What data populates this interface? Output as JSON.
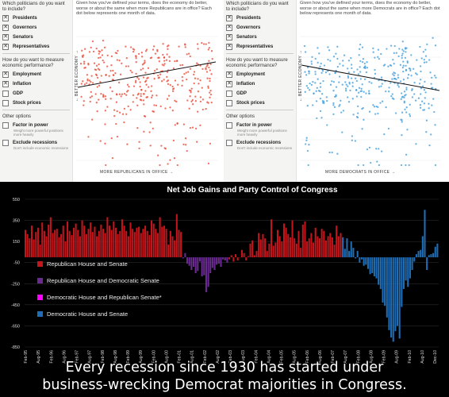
{
  "left_panel": {
    "sidebar": {
      "question_office": "Which politicians do you want to include?",
      "offices": [
        {
          "label": "Presidents",
          "checked": true
        },
        {
          "label": "Governors",
          "checked": true
        },
        {
          "label": "Senators",
          "checked": true
        },
        {
          "label": "Representatives",
          "checked": true
        }
      ],
      "question_measure": "How do you want to measure economic performance?",
      "measures": [
        {
          "label": "Employment",
          "checked": true
        },
        {
          "label": "Inflation",
          "checked": true
        },
        {
          "label": "GDP",
          "checked": false
        },
        {
          "label": "Stock prices",
          "checked": false
        }
      ],
      "other_title": "Other options",
      "options": [
        {
          "label": "Factor in power",
          "checked": false,
          "sub": "Weight more powerful positions more heavily"
        },
        {
          "label": "Exclude recessions",
          "checked": false,
          "sub": "Don't include economic recessions"
        }
      ]
    },
    "description": "Given how you've defined your terms, does the economy do better, worse or about the same when more Republicans are in office? Each dot below represents one month of data.",
    "y_axis": "← BETTER ECONOMY →",
    "x_axis": "MORE REPUBLICANS IN OFFICE →",
    "dot_color": "#e8412c"
  },
  "right_panel": {
    "sidebar": {
      "question_office": "Which politicians do you want to include?",
      "offices": [
        {
          "label": "Presidents",
          "checked": true
        },
        {
          "label": "Governors",
          "checked": true
        },
        {
          "label": "Senators",
          "checked": true
        },
        {
          "label": "Representatives",
          "checked": true
        }
      ],
      "question_measure": "How do you want to measure economic performance?",
      "measures": [
        {
          "label": "Employment",
          "checked": true
        },
        {
          "label": "Inflation",
          "checked": true
        },
        {
          "label": "GDP",
          "checked": false
        },
        {
          "label": "Stock prices",
          "checked": false
        }
      ],
      "other_title": "Other options",
      "options": [
        {
          "label": "Factor in power",
          "checked": false,
          "sub": "Weight more powerful positions more heavily"
        },
        {
          "label": "Exclude recessions",
          "checked": false,
          "sub": "Don't include economic recessions"
        }
      ]
    },
    "description": "Given how you've defined your terms, does the economy do better, worse or about the same when more Democrats are in office? Each dot below represents one month of data.",
    "y_axis": "← BETTER ECONOMY →",
    "x_axis": "MORE DEMOCRATS IN OFFICE →",
    "dot_color": "#3a9ad9"
  },
  "chart_data": {
    "type": "bar",
    "title": "Net Job Gains and Party Control of Congress",
    "ylim": [
      -850,
      550
    ],
    "yticks": [
      550,
      350,
      150,
      -50,
      -250,
      -450,
      -650,
      -850
    ],
    "xticks": [
      "Feb-95",
      "Aug-95",
      "Feb-96",
      "Aug-96",
      "Feb-97",
      "Aug-97",
      "Feb-98",
      "Aug-98",
      "Feb-99",
      "Aug-99",
      "Feb-00",
      "Aug-00",
      "Feb-01",
      "Aug-01",
      "Feb-02",
      "Aug-02",
      "Feb-03",
      "Aug-03",
      "Feb-04",
      "Aug-04",
      "Feb-05",
      "Aug-05",
      "Feb-06",
      "Aug-06",
      "Feb-07",
      "Aug-07",
      "Feb-08",
      "Aug-08",
      "Feb-09",
      "Aug-09",
      "Feb-10",
      "Aug-10",
      "Dec-10"
    ],
    "legend": [
      {
        "label": "Republican House and Senate",
        "color": "#c0161c"
      },
      {
        "label": "Republican House and Democratic Senate",
        "color": "#6a2b91"
      },
      {
        "label": "Democratic House and Republican Senate*",
        "color": "#ff00ff"
      },
      {
        "label": "Democratic House and Senate",
        "color": "#1f6db5"
      }
    ],
    "series": [
      {
        "control": "Republican House and Senate",
        "color": "#c0161c",
        "values": [
          260,
          220,
          180,
          300,
          170,
          240,
          280,
          120,
          330,
          250,
          200,
          310,
          380,
          230,
          260,
          270,
          190,
          220,
          300,
          150,
          340,
          250,
          210,
          280,
          320,
          260,
          200,
          350,
          300,
          220,
          270,
          330,
          240,
          290,
          200,
          250,
          310,
          270,
          230,
          380,
          300,
          260,
          340,
          280,
          220,
          250,
          360,
          300,
          250,
          200,
          330,
          270,
          240,
          280,
          290,
          230,
          270,
          300,
          250,
          210,
          350,
          320,
          270,
          230,
          380,
          290,
          300,
          270,
          120,
          250,
          200,
          160,
          410,
          260,
          240
        ]
      },
      {
        "control": "Republican House and Democratic Senate",
        "color": "#6a2b91",
        "values": [
          -10,
          40,
          -60,
          -80,
          -120,
          -90,
          -150,
          -130,
          -40,
          -180,
          -170,
          -330,
          -280,
          -150,
          -100,
          -120,
          -70,
          -60,
          -90,
          -20,
          -30,
          -50
        ]
      },
      {
        "control": "Republican House and Senate",
        "color": "#c0161c",
        "values": [
          -20,
          20,
          -40,
          30,
          -30,
          0,
          70,
          40,
          -30,
          10,
          130,
          160,
          20,
          60,
          230,
          170,
          220,
          180,
          60,
          130,
          360,
          110,
          140,
          260,
          200,
          150,
          320,
          280,
          220,
          190,
          350,
          180,
          130,
          250,
          90,
          310,
          340,
          150,
          180,
          230,
          140,
          280,
          200,
          180,
          270,
          250,
          160,
          200,
          230,
          190,
          120,
          300,
          200,
          230
        ]
      },
      {
        "control": "Democratic House and Senate",
        "color": "#1f6db5",
        "values": [
          190,
          80,
          180,
          60,
          150,
          90,
          -10,
          60,
          -50,
          -20,
          -80,
          -70,
          -110,
          -160,
          -150,
          -180,
          -200,
          -260,
          -300,
          -430,
          -460,
          -570,
          -690,
          -760,
          -800,
          -700,
          -650,
          -770,
          -470,
          -300,
          -220,
          -280,
          -200,
          -120,
          -40,
          30,
          60,
          70,
          200,
          450,
          -120,
          20,
          30,
          40,
          100,
          130
        ]
      }
    ]
  },
  "caption": {
    "line1": "Every recession since 1930 has started under",
    "line2": "business-wrecking Democrat majorities in Congress."
  }
}
